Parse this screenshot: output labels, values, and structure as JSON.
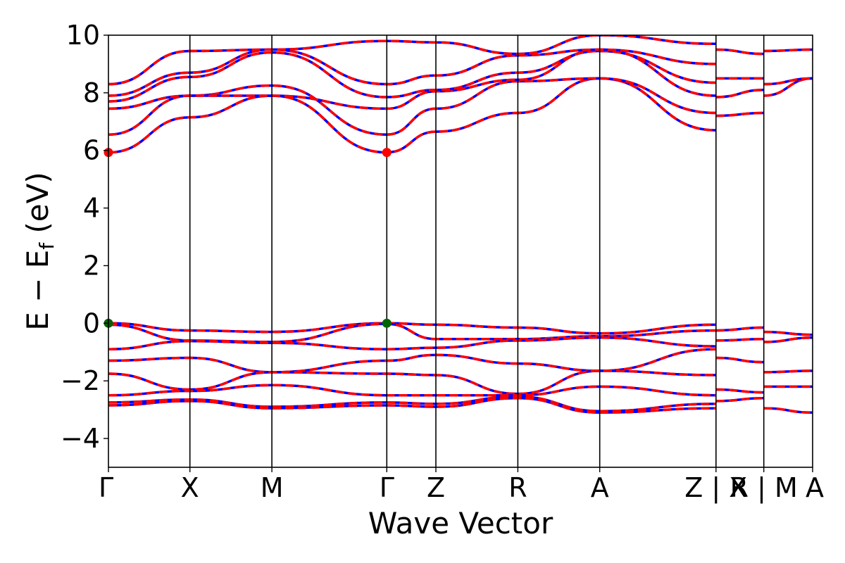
{
  "chart_data": {
    "type": "line",
    "xlabel": "Wave Vector",
    "ylabel": "E − E_f (eV)",
    "ylabel_main": "E − E",
    "ylabel_sub": "f",
    "ylabel_unit": " (eV)",
    "ylim": [
      -5,
      10
    ],
    "yticks": [
      -4,
      -2,
      0,
      2,
      4,
      6,
      8,
      10
    ],
    "ytick_labels": [
      "−4",
      "−2",
      "0",
      "2",
      "4",
      "6",
      "8",
      "10"
    ],
    "xlim": [
      0,
      1
    ],
    "kpoint_positions": [
      0,
      0.1157,
      0.2321,
      0.3953,
      0.465,
      0.5814,
      0.6977,
      0.8628,
      0.9307,
      1.0
    ],
    "kpoint_labels": [
      "Γ",
      "X",
      "M",
      "Γ",
      "Z",
      "R",
      "A",
      "Z | X",
      "R | M",
      "A"
    ],
    "colors": {
      "spin_up": "#ff0000",
      "spin_down": "#0000ff",
      "cbm": "#ff0000",
      "vbm": "#006400"
    },
    "cbm": [
      {
        "x": 0,
        "y": 5.93
      },
      {
        "x": 0.3953,
        "y": 5.93
      }
    ],
    "vbm": [
      {
        "x": 0,
        "y": 0.0
      },
      {
        "x": 0.3953,
        "y": 0.0
      }
    ],
    "series": [
      {
        "x": [
          0,
          0.1157,
          0.2321,
          0.3953,
          0.465,
          0.5814,
          0.6977,
          0.8628
        ],
        "values": [
          0.0,
          -0.25,
          -0.3,
          0.0,
          -0.05,
          -0.15,
          -0.35,
          -0.05
        ]
      },
      {
        "x": [
          0,
          0.1157,
          0.2321,
          0.3953,
          0.465,
          0.5814,
          0.6977,
          0.8628
        ],
        "values": [
          -0.05,
          -0.6,
          -0.65,
          -0.02,
          -0.55,
          -0.55,
          -0.45,
          -0.25
        ]
      },
      {
        "x": [
          0,
          0.1157,
          0.2321,
          0.3953,
          0.465,
          0.5814,
          0.6977,
          0.8628
        ],
        "values": [
          -0.9,
          -0.62,
          -0.68,
          -0.9,
          -0.85,
          -0.6,
          -0.5,
          -0.8
        ]
      },
      {
        "x": [
          0,
          0.1157,
          0.2321,
          0.3953,
          0.465,
          0.5814,
          0.6977,
          0.8628
        ],
        "values": [
          -1.3,
          -1.2,
          -1.7,
          -1.3,
          -1.1,
          -1.4,
          -1.65,
          -0.9
        ]
      },
      {
        "x": [
          0,
          0.1157,
          0.2321,
          0.3953,
          0.465,
          0.5814,
          0.6977,
          0.8628
        ],
        "values": [
          -1.75,
          -2.3,
          -1.7,
          -1.75,
          -1.8,
          -2.45,
          -1.65,
          -1.8
        ]
      },
      {
        "x": [
          0,
          0.1157,
          0.2321,
          0.3953,
          0.465,
          0.5814,
          0.6977,
          0.8628
        ],
        "values": [
          -2.5,
          -2.35,
          -2.15,
          -2.5,
          -2.5,
          -2.5,
          -2.2,
          -2.5
        ]
      },
      {
        "x": [
          0,
          0.1157,
          0.2321,
          0.3953,
          0.465,
          0.5814,
          0.6977,
          0.8628
        ],
        "values": [
          -2.75,
          -2.65,
          -2.9,
          -2.75,
          -2.8,
          -2.55,
          -3.05,
          -2.8
        ]
      },
      {
        "x": [
          0,
          0.1157,
          0.2321,
          0.3953,
          0.465,
          0.5814,
          0.6977,
          0.8628
        ],
        "values": [
          -2.85,
          -2.7,
          -2.95,
          -2.85,
          -2.9,
          -2.6,
          -3.1,
          -2.95
        ]
      },
      {
        "x": [
          0.8628,
          0.9307
        ],
        "values": [
          -0.25,
          -0.15
        ]
      },
      {
        "x": [
          0.8628,
          0.9307
        ],
        "values": [
          -0.6,
          -0.55
        ]
      },
      {
        "x": [
          0.8628,
          0.9307
        ],
        "values": [
          -1.2,
          -1.35
        ]
      },
      {
        "x": [
          0.8628,
          0.9307
        ],
        "values": [
          -2.3,
          -2.4
        ]
      },
      {
        "x": [
          0.8628,
          0.9307
        ],
        "values": [
          -2.7,
          -2.6
        ]
      },
      {
        "x": [
          0.9307,
          1.0
        ],
        "values": [
          -0.3,
          -0.4
        ]
      },
      {
        "x": [
          0.9307,
          1.0
        ],
        "values": [
          -0.65,
          -0.5
        ]
      },
      {
        "x": [
          0.9307,
          1.0
        ],
        "values": [
          -1.7,
          -1.65
        ]
      },
      {
        "x": [
          0.9307,
          1.0
        ],
        "values": [
          -2.2,
          -2.2
        ]
      },
      {
        "x": [
          0.9307,
          1.0
        ],
        "values": [
          -2.95,
          -3.1
        ]
      },
      {
        "x": [
          0,
          0.1157,
          0.2321,
          0.3953,
          0.465,
          0.5814,
          0.6977,
          0.8628
        ],
        "values": [
          5.93,
          7.15,
          7.9,
          5.93,
          6.65,
          7.3,
          8.5,
          6.7
        ]
      },
      {
        "x": [
          0,
          0.1157,
          0.2321,
          0.3953,
          0.465,
          0.5814,
          0.6977,
          0.8628
        ],
        "values": [
          6.55,
          7.9,
          8.25,
          6.55,
          7.45,
          8.4,
          8.5,
          7.3
        ]
      },
      {
        "x": [
          0,
          0.1157,
          0.2321,
          0.3953,
          0.465,
          0.5814,
          0.6977,
          0.8628
        ],
        "values": [
          7.45,
          7.9,
          7.9,
          7.45,
          8.05,
          8.45,
          9.5,
          7.9
        ]
      },
      {
        "x": [
          0,
          0.1157,
          0.2321,
          0.3953,
          0.465,
          0.5814,
          0.6977,
          0.8628
        ],
        "values": [
          7.7,
          8.55,
          9.4,
          7.85,
          8.1,
          8.7,
          9.45,
          8.35
        ]
      },
      {
        "x": [
          0,
          0.1157,
          0.2321,
          0.3953,
          0.465,
          0.5814,
          0.6977,
          0.8628
        ],
        "values": [
          7.9,
          8.7,
          9.5,
          8.3,
          8.6,
          9.3,
          9.5,
          9.0
        ]
      },
      {
        "x": [
          0,
          0.1157,
          0.2321,
          0.3953,
          0.465,
          0.5814,
          0.6977,
          0.8628
        ],
        "values": [
          8.3,
          9.45,
          9.5,
          9.8,
          9.75,
          9.35,
          10.0,
          9.7
        ]
      },
      {
        "x": [
          0.8628,
          0.9307
        ],
        "values": [
          7.2,
          7.3
        ]
      },
      {
        "x": [
          0.8628,
          0.9307
        ],
        "values": [
          7.85,
          8.1
        ]
      },
      {
        "x": [
          0.8628,
          0.9307
        ],
        "values": [
          8.5,
          8.5
        ]
      },
      {
        "x": [
          0.8628,
          0.9307
        ],
        "values": [
          9.5,
          9.35
        ]
      },
      {
        "x": [
          0.9307,
          1.0
        ],
        "values": [
          7.9,
          8.5
        ]
      },
      {
        "x": [
          0.9307,
          1.0
        ],
        "values": [
          8.3,
          8.5
        ]
      },
      {
        "x": [
          0.9307,
          1.0
        ],
        "values": [
          9.45,
          9.5
        ]
      }
    ]
  }
}
